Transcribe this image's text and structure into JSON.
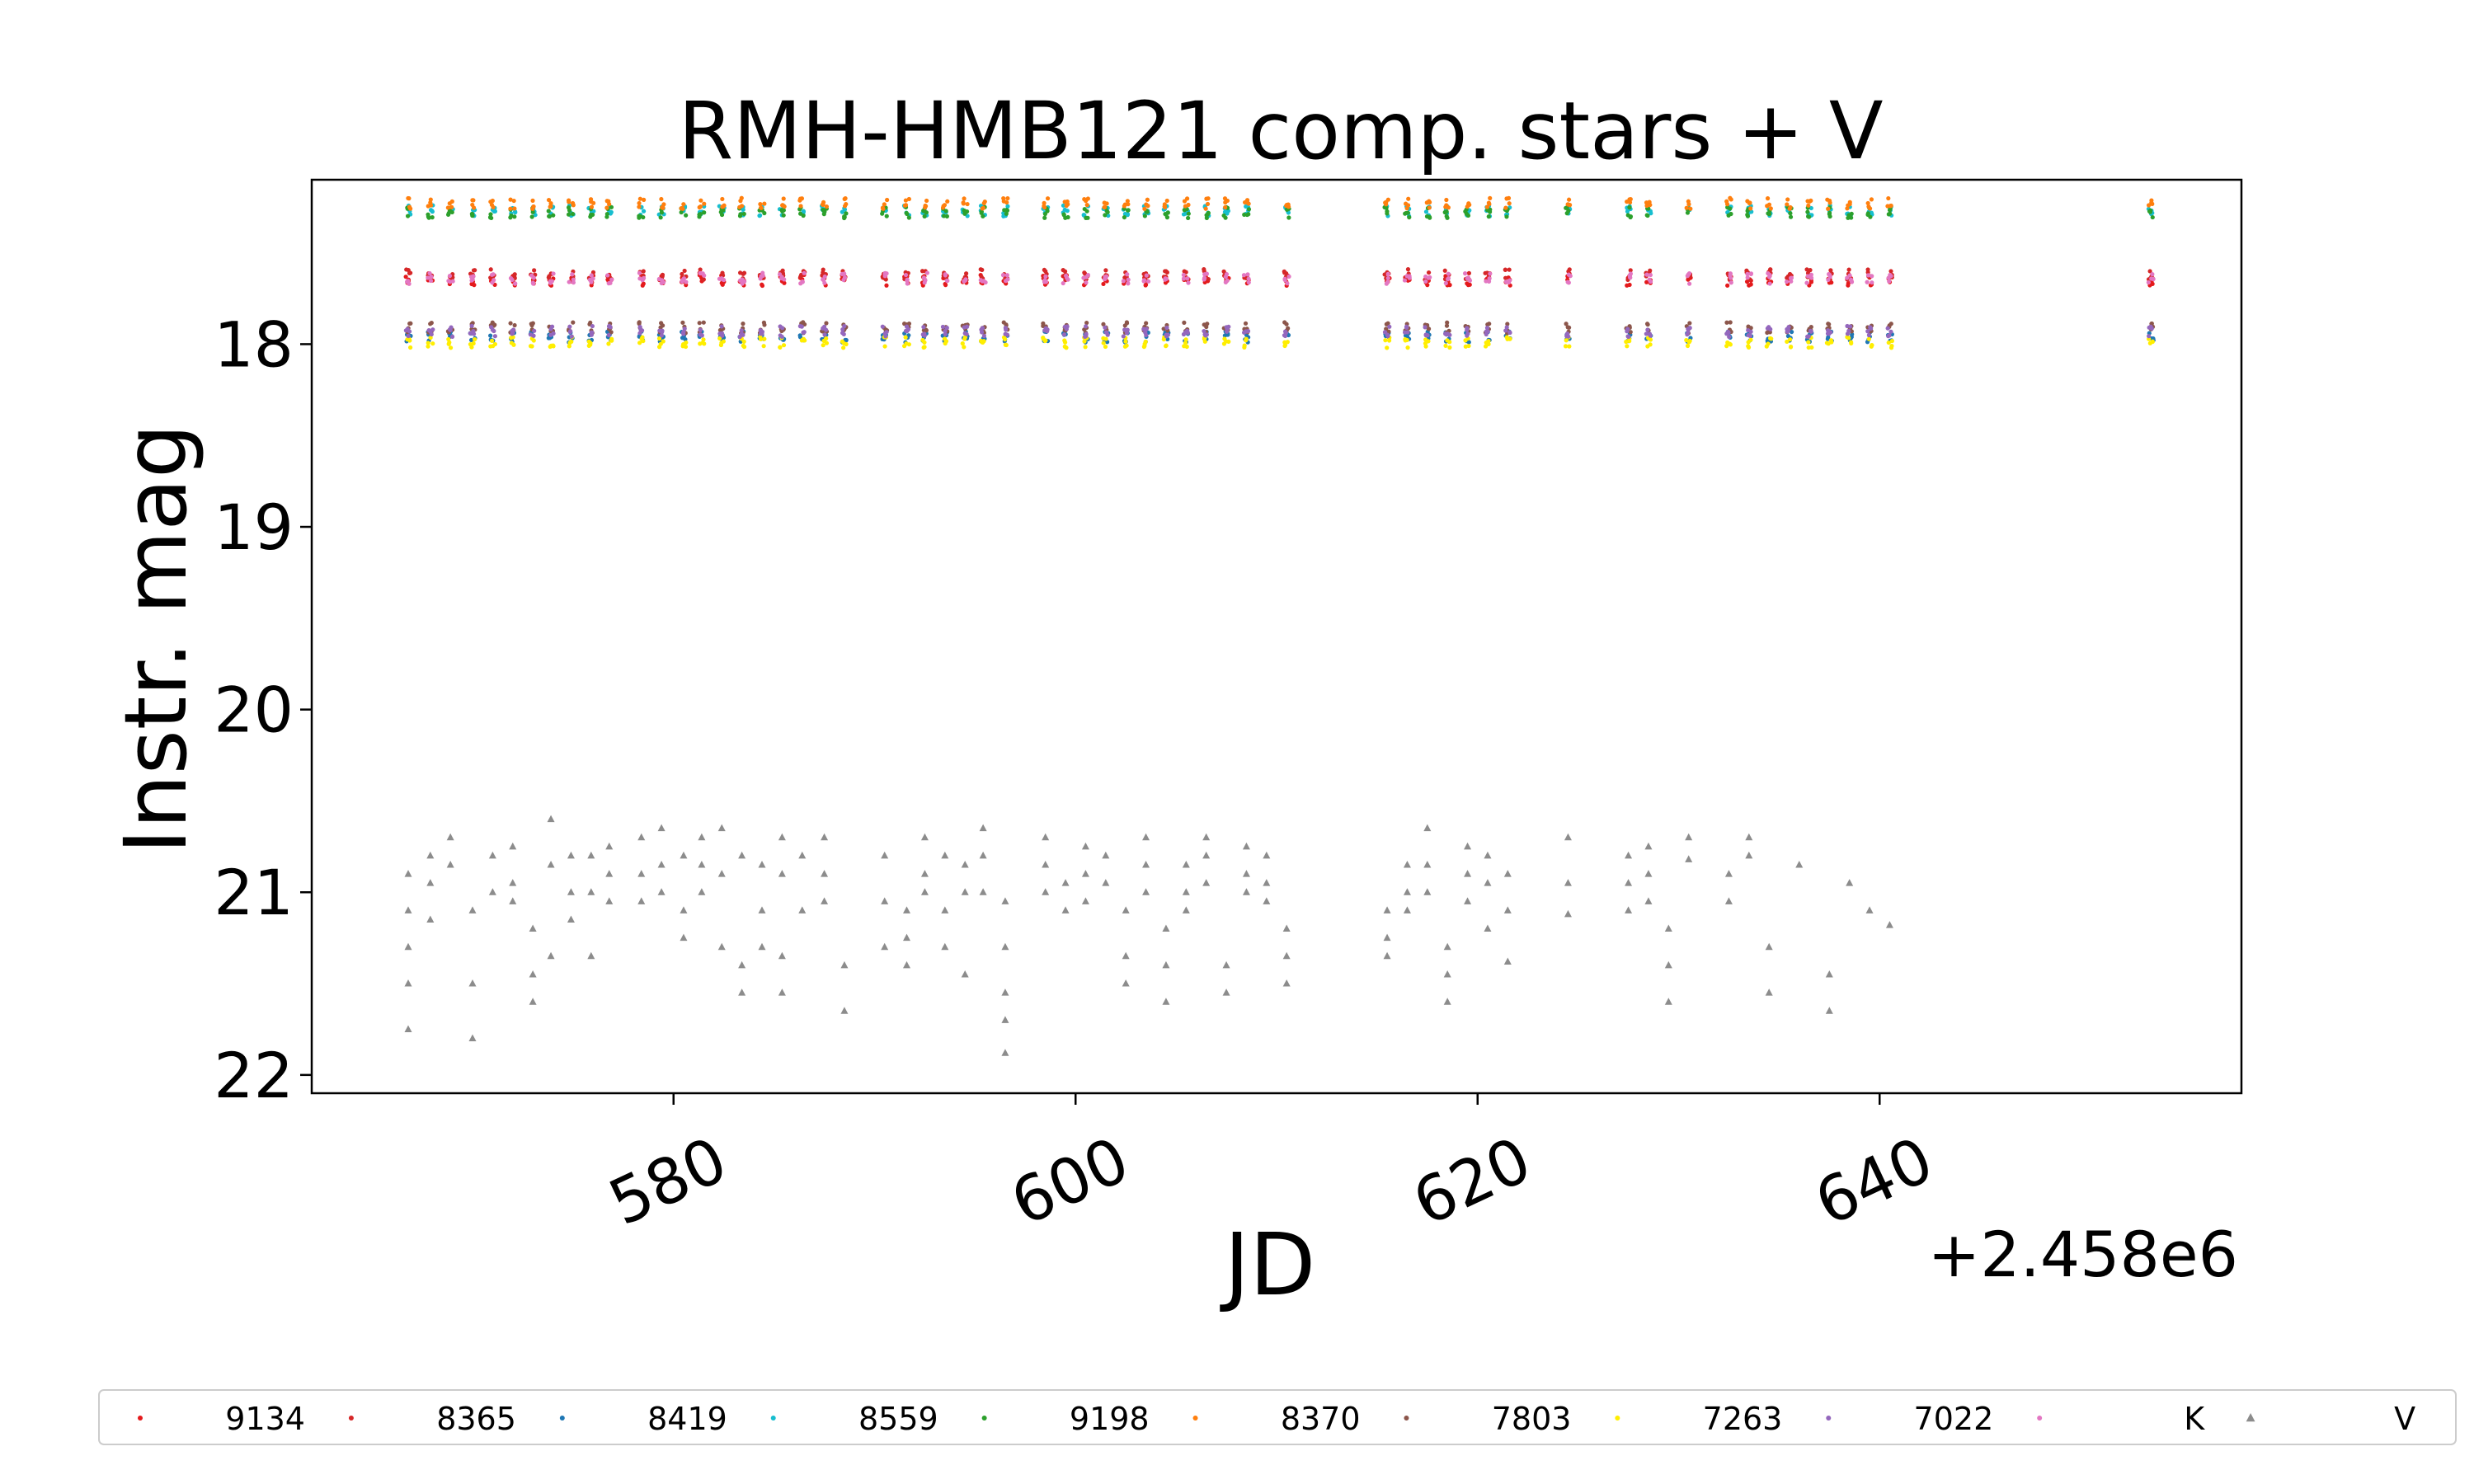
{
  "chart_data": {
    "type": "scatter",
    "title": "RMH-HMB121 comp. stars + V",
    "xlabel": "JD",
    "ylabel": "Instr. mag",
    "x_offset_label": "+2.458e6",
    "xlim": [
      562,
      658
    ],
    "ylim": [
      22.1,
      17.1
    ],
    "y_inverted": true,
    "xticks": [
      580,
      600,
      620,
      640
    ],
    "yticks": [
      18,
      19,
      20,
      21,
      22
    ],
    "x_tick_rotation_deg": -25,
    "grid": false,
    "legend_position": "bottom (below plot, single row)",
    "nights": [
      566.8,
      567.9,
      568.9,
      570.0,
      571.0,
      572.0,
      573.0,
      573.9,
      574.9,
      575.9,
      576.8,
      578.4,
      579.4,
      580.5,
      581.4,
      582.4,
      583.4,
      584.4,
      585.4,
      586.4,
      587.5,
      588.5,
      590.5,
      591.6,
      592.5,
      593.5,
      594.5,
      595.4,
      596.5,
      598.5,
      599.5,
      600.5,
      601.5,
      602.5,
      603.5,
      604.5,
      605.5,
      606.5,
      607.5,
      608.5,
      610.5,
      615.5,
      616.5,
      617.5,
      618.5,
      619.5,
      620.5,
      621.5,
      624.5,
      627.5,
      628.5,
      630.5,
      632.5,
      633.5,
      634.5,
      635.5,
      636.5,
      637.5,
      638.5,
      639.5,
      640.5,
      653.5
    ],
    "series": [
      {
        "name": "9134",
        "color": "#e41a1c",
        "marker": "dot",
        "mag": 17.65
      },
      {
        "name": "8365",
        "color": "#d62728",
        "marker": "dot",
        "mag": 17.62
      },
      {
        "name": "8419",
        "color": "#1f77b4",
        "marker": "dot",
        "mag": 17.96
      },
      {
        "name": "8559",
        "color": "#17becf",
        "marker": "dot",
        "mag": 17.27
      },
      {
        "name": "9198",
        "color": "#2ca02c",
        "marker": "dot",
        "mag": 17.28
      },
      {
        "name": "8370",
        "color": "#ff7f0e",
        "marker": "dot",
        "mag": 17.23
      },
      {
        "name": "7803",
        "color": "#8c564b",
        "marker": "dot",
        "mag": 17.91
      },
      {
        "name": "7263",
        "color": "#ffee00",
        "marker": "dot",
        "mag": 17.99
      },
      {
        "name": "7022",
        "color": "#9467bd",
        "marker": "dot",
        "mag": 17.93
      },
      {
        "name": "K",
        "color": "#e377c2",
        "marker": "dot",
        "mag": 17.64
      },
      {
        "name": "V",
        "color": "#8c8c8c",
        "marker": "triangle",
        "points": [
          [
            566.8,
            20.9
          ],
          [
            566.8,
            21.1
          ],
          [
            566.8,
            21.3
          ],
          [
            566.8,
            21.5
          ],
          [
            566.8,
            21.75
          ],
          [
            567.9,
            20.8
          ],
          [
            567.9,
            20.95
          ],
          [
            567.9,
            21.15
          ],
          [
            568.9,
            20.7
          ],
          [
            568.9,
            20.85
          ],
          [
            570.0,
            21.1
          ],
          [
            570.0,
            21.5
          ],
          [
            570.0,
            21.8
          ],
          [
            571.0,
            20.8
          ],
          [
            571.0,
            21.0
          ],
          [
            572.0,
            20.75
          ],
          [
            572.0,
            20.95
          ],
          [
            572.0,
            21.05
          ],
          [
            573.0,
            21.2
          ],
          [
            573.0,
            21.45
          ],
          [
            573.0,
            21.6
          ],
          [
            573.9,
            20.6
          ],
          [
            573.9,
            20.85
          ],
          [
            573.9,
            21.35
          ],
          [
            574.9,
            20.8
          ],
          [
            574.9,
            21.0
          ],
          [
            574.9,
            21.15
          ],
          [
            575.9,
            20.8
          ],
          [
            575.9,
            21.0
          ],
          [
            575.9,
            21.35
          ],
          [
            576.8,
            20.75
          ],
          [
            576.8,
            20.9
          ],
          [
            576.8,
            21.05
          ],
          [
            578.4,
            20.7
          ],
          [
            578.4,
            20.9
          ],
          [
            578.4,
            21.05
          ],
          [
            579.4,
            20.65
          ],
          [
            579.4,
            20.85
          ],
          [
            579.4,
            21.0
          ],
          [
            580.5,
            20.8
          ],
          [
            580.5,
            21.1
          ],
          [
            580.5,
            21.25
          ],
          [
            581.4,
            20.7
          ],
          [
            581.4,
            20.85
          ],
          [
            581.4,
            21.0
          ],
          [
            582.4,
            20.65
          ],
          [
            582.4,
            20.9
          ],
          [
            582.4,
            21.3
          ],
          [
            583.4,
            20.8
          ],
          [
            583.4,
            21.4
          ],
          [
            583.4,
            21.55
          ],
          [
            584.4,
            20.85
          ],
          [
            584.4,
            21.1
          ],
          [
            584.4,
            21.3
          ],
          [
            585.4,
            20.7
          ],
          [
            585.4,
            20.9
          ],
          [
            585.4,
            21.35
          ],
          [
            585.4,
            21.55
          ],
          [
            586.4,
            20.8
          ],
          [
            586.4,
            21.1
          ],
          [
            587.5,
            20.7
          ],
          [
            587.5,
            20.9
          ],
          [
            587.5,
            21.05
          ],
          [
            588.5,
            21.4
          ],
          [
            588.5,
            21.65
          ],
          [
            590.5,
            20.8
          ],
          [
            590.5,
            21.05
          ],
          [
            590.5,
            21.3
          ],
          [
            591.6,
            21.1
          ],
          [
            591.6,
            21.25
          ],
          [
            591.6,
            21.4
          ],
          [
            592.5,
            20.7
          ],
          [
            592.5,
            20.9
          ],
          [
            592.5,
            21.0
          ],
          [
            593.5,
            20.8
          ],
          [
            593.5,
            21.1
          ],
          [
            593.5,
            21.3
          ],
          [
            594.5,
            20.85
          ],
          [
            594.5,
            21.0
          ],
          [
            594.5,
            21.45
          ],
          [
            595.4,
            20.65
          ],
          [
            595.4,
            20.8
          ],
          [
            595.4,
            21.0
          ],
          [
            596.5,
            21.05
          ],
          [
            596.5,
            21.3
          ],
          [
            596.5,
            21.55
          ],
          [
            596.5,
            21.7
          ],
          [
            596.5,
            21.88
          ],
          [
            598.5,
            20.7
          ],
          [
            598.5,
            20.85
          ],
          [
            598.5,
            21.0
          ],
          [
            599.5,
            20.95
          ],
          [
            599.5,
            21.1
          ],
          [
            600.5,
            20.75
          ],
          [
            600.5,
            20.9
          ],
          [
            600.5,
            21.05
          ],
          [
            601.5,
            20.8
          ],
          [
            601.5,
            20.95
          ],
          [
            602.5,
            21.1
          ],
          [
            602.5,
            21.35
          ],
          [
            602.5,
            21.5
          ],
          [
            603.5,
            20.7
          ],
          [
            603.5,
            20.85
          ],
          [
            603.5,
            21.0
          ],
          [
            604.5,
            21.2
          ],
          [
            604.5,
            21.4
          ],
          [
            604.5,
            21.6
          ],
          [
            605.5,
            20.85
          ],
          [
            605.5,
            21.0
          ],
          [
            605.5,
            21.1
          ],
          [
            606.5,
            20.7
          ],
          [
            606.5,
            20.8
          ],
          [
            606.5,
            20.95
          ],
          [
            607.5,
            21.4
          ],
          [
            607.5,
            21.55
          ],
          [
            608.5,
            20.75
          ],
          [
            608.5,
            20.9
          ],
          [
            608.5,
            21.0
          ],
          [
            609.5,
            20.8
          ],
          [
            609.5,
            20.95
          ],
          [
            609.5,
            21.05
          ],
          [
            610.5,
            21.2
          ],
          [
            610.5,
            21.35
          ],
          [
            610.5,
            21.5
          ],
          [
            615.5,
            21.1
          ],
          [
            615.5,
            21.25
          ],
          [
            615.5,
            21.35
          ],
          [
            616.5,
            20.85
          ],
          [
            616.5,
            21.0
          ],
          [
            616.5,
            21.1
          ],
          [
            617.5,
            20.65
          ],
          [
            617.5,
            20.85
          ],
          [
            617.5,
            21.0
          ],
          [
            618.5,
            21.3
          ],
          [
            618.5,
            21.45
          ],
          [
            618.5,
            21.6
          ],
          [
            619.5,
            20.75
          ],
          [
            619.5,
            20.9
          ],
          [
            619.5,
            21.05
          ],
          [
            620.5,
            20.8
          ],
          [
            620.5,
            20.95
          ],
          [
            620.5,
            21.2
          ],
          [
            621.5,
            20.9
          ],
          [
            621.5,
            21.1
          ],
          [
            621.5,
            21.38
          ],
          [
            624.5,
            20.7
          ],
          [
            624.5,
            20.95
          ],
          [
            624.5,
            21.12
          ],
          [
            627.5,
            20.8
          ],
          [
            627.5,
            20.95
          ],
          [
            627.5,
            21.1
          ],
          [
            628.5,
            20.75
          ],
          [
            628.5,
            20.9
          ],
          [
            628.5,
            21.05
          ],
          [
            629.5,
            21.2
          ],
          [
            629.5,
            21.4
          ],
          [
            629.5,
            21.6
          ],
          [
            630.5,
            20.7
          ],
          [
            630.5,
            20.82
          ],
          [
            632.5,
            20.9
          ],
          [
            632.5,
            21.05
          ],
          [
            633.5,
            20.7
          ],
          [
            633.5,
            20.8
          ],
          [
            634.5,
            21.3
          ],
          [
            634.5,
            21.55
          ],
          [
            636.0,
            20.85
          ],
          [
            637.5,
            21.45
          ],
          [
            637.5,
            21.65
          ],
          [
            638.5,
            20.95
          ],
          [
            639.5,
            21.1
          ],
          [
            640.5,
            21.18
          ]
        ]
      }
    ]
  }
}
